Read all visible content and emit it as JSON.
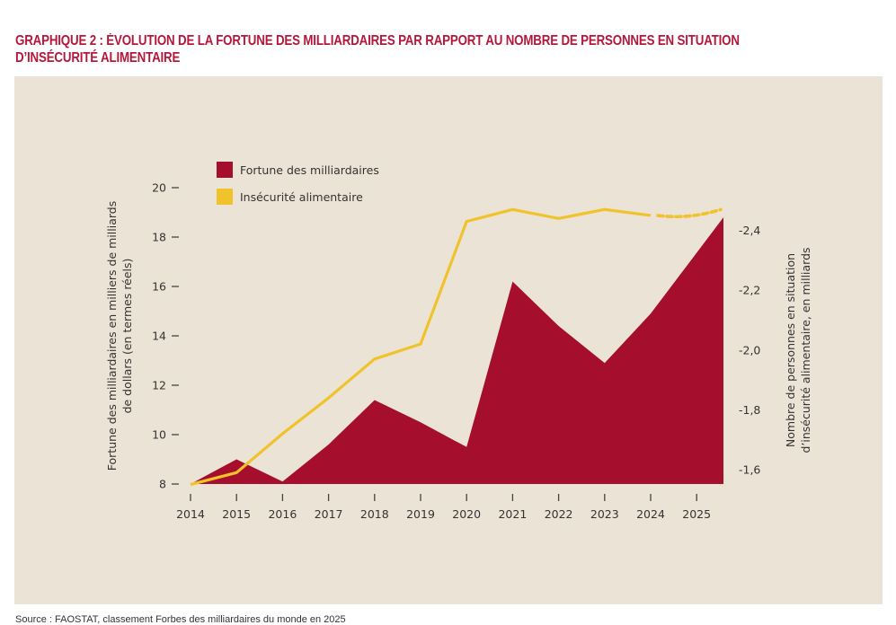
{
  "title_line1": "GRAPHIQUE 2 : ÉVOLUTION DE LA FORTUNE DES MILLIARDAIRES PAR RAPPORT AU NOMBRE DE PERSONNES EN SITUATION",
  "title_line2": "D’INSÉCURITÉ ALIMENTAIRE",
  "source": "Source : FAOSTAT, classement Forbes des milliardaires du monde en 2025",
  "colors": {
    "title": "#b5173a",
    "fortune": "#a50e2d",
    "insecurity": "#f0c22c",
    "background": "#ebe4d6"
  },
  "chart_data": {
    "type": "area+line",
    "title": "Évolution de la fortune des milliardaires par rapport au nombre de personnes en situation d’insécurité alimentaire",
    "categories": [
      "2014",
      "2015",
      "2016",
      "2017",
      "2018",
      "2019",
      "2020",
      "2021",
      "2022",
      "2023",
      "2024",
      "2025"
    ],
    "series": [
      {
        "name": "Fortune des milliardaires",
        "type": "area",
        "axis": "left",
        "x": [
          2014,
          2015,
          2016,
          2017,
          2018,
          2019,
          2020,
          2021,
          2022,
          2023,
          2024,
          2025
        ],
        "values": [
          8.0,
          9.0,
          8.1,
          9.6,
          11.4,
          10.5,
          9.5,
          16.2,
          14.4,
          12.9,
          14.9,
          18.8
        ]
      },
      {
        "name": "Insécurité alimentaire",
        "type": "line",
        "axis": "right",
        "x": [
          2014,
          2015,
          2016,
          2017,
          2018,
          2019,
          2020,
          2021,
          2022,
          2023,
          2024
        ],
        "values": [
          1.55,
          1.59,
          1.72,
          1.84,
          1.97,
          2.02,
          2.43,
          2.47,
          2.44,
          2.47,
          2.45
        ],
        "projection": {
          "x": [
            2024,
            2025
          ],
          "values": [
            2.45,
            2.47
          ],
          "style": "dashed"
        }
      }
    ],
    "left_axis": {
      "label_line1": "Fortune des milliardaires en milliers de milliards",
      "label_line2": "de dollars (en termes réels)",
      "ticks": [
        "20",
        "18",
        "16",
        "14",
        "12",
        "10",
        "8"
      ],
      "tick_values": [
        20,
        18,
        16,
        14,
        12,
        10,
        8
      ],
      "range": [
        8,
        20
      ]
    },
    "right_axis": {
      "label_line1": "Nombre de personnes en situation",
      "label_line2": "d’insécurité alimentaire, en milliards",
      "ticks": [
        "-2,4",
        "-2,2",
        "-2,0",
        "-1,8",
        "-1,6"
      ],
      "tick_values": [
        2.4,
        2.2,
        2.0,
        1.8,
        1.6
      ],
      "range": [
        1.55,
        2.5
      ]
    },
    "legend": {
      "position": "top-left",
      "items": [
        "Fortune des milliardaires",
        "Insécurité alimentaire"
      ]
    },
    "grid": false
  }
}
